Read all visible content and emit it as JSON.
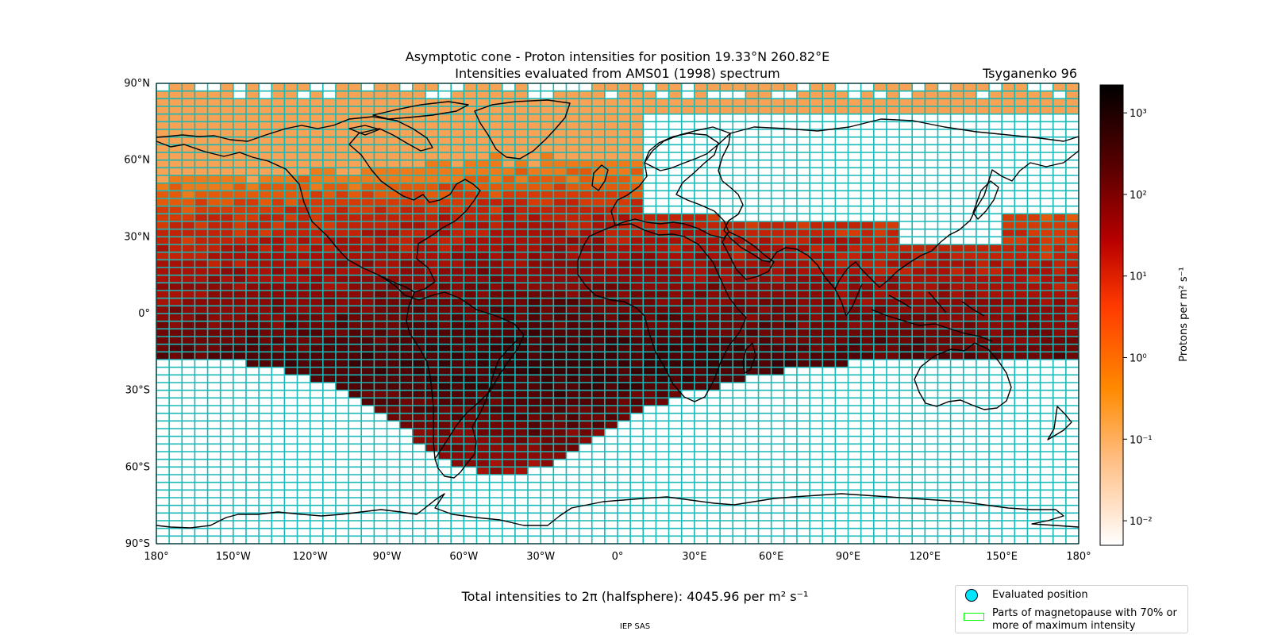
{
  "title": {
    "line1": "Asymptotic cone - Proton intensities for position 19.33°N 260.82°E",
    "line2": "Intensities evaluated from AMS01 (1998) spectrum",
    "model": "Tsyganenko 96"
  },
  "axes": {
    "lat_ticks": [
      "90°N",
      "60°N",
      "30°N",
      "0°",
      "30°S",
      "60°S",
      "90°S"
    ],
    "lon_ticks": [
      "180°",
      "150°W",
      "120°W",
      "90°W",
      "60°W",
      "30°W",
      "0°",
      "30°E",
      "60°E",
      "90°E",
      "120°E",
      "150°E",
      "180°"
    ]
  },
  "colorbar": {
    "label": "Protons per m² s⁻¹",
    "tick_labels": [
      "10³",
      "10²",
      "10¹",
      "10⁰",
      "10⁻¹",
      "10⁻²"
    ],
    "scale": "log",
    "range": [
      0.005,
      2200
    ],
    "colormap": "gist_heat_r"
  },
  "legend": {
    "evaluated_position": "Evaluated position",
    "magnetopause": "Parts of magnetopause with 70% or more of maximum intensity",
    "marker_color": "#00e5ff",
    "magnetopause_color": "#00ff00"
  },
  "total_intensity": {
    "prefix": "Total intensities to 2π (halfsphere): 4045.96 per m² s⁻¹"
  },
  "credit": "IEP SAS",
  "colors": {
    "grid": "#17b8b8",
    "coast": "#000000"
  }
}
